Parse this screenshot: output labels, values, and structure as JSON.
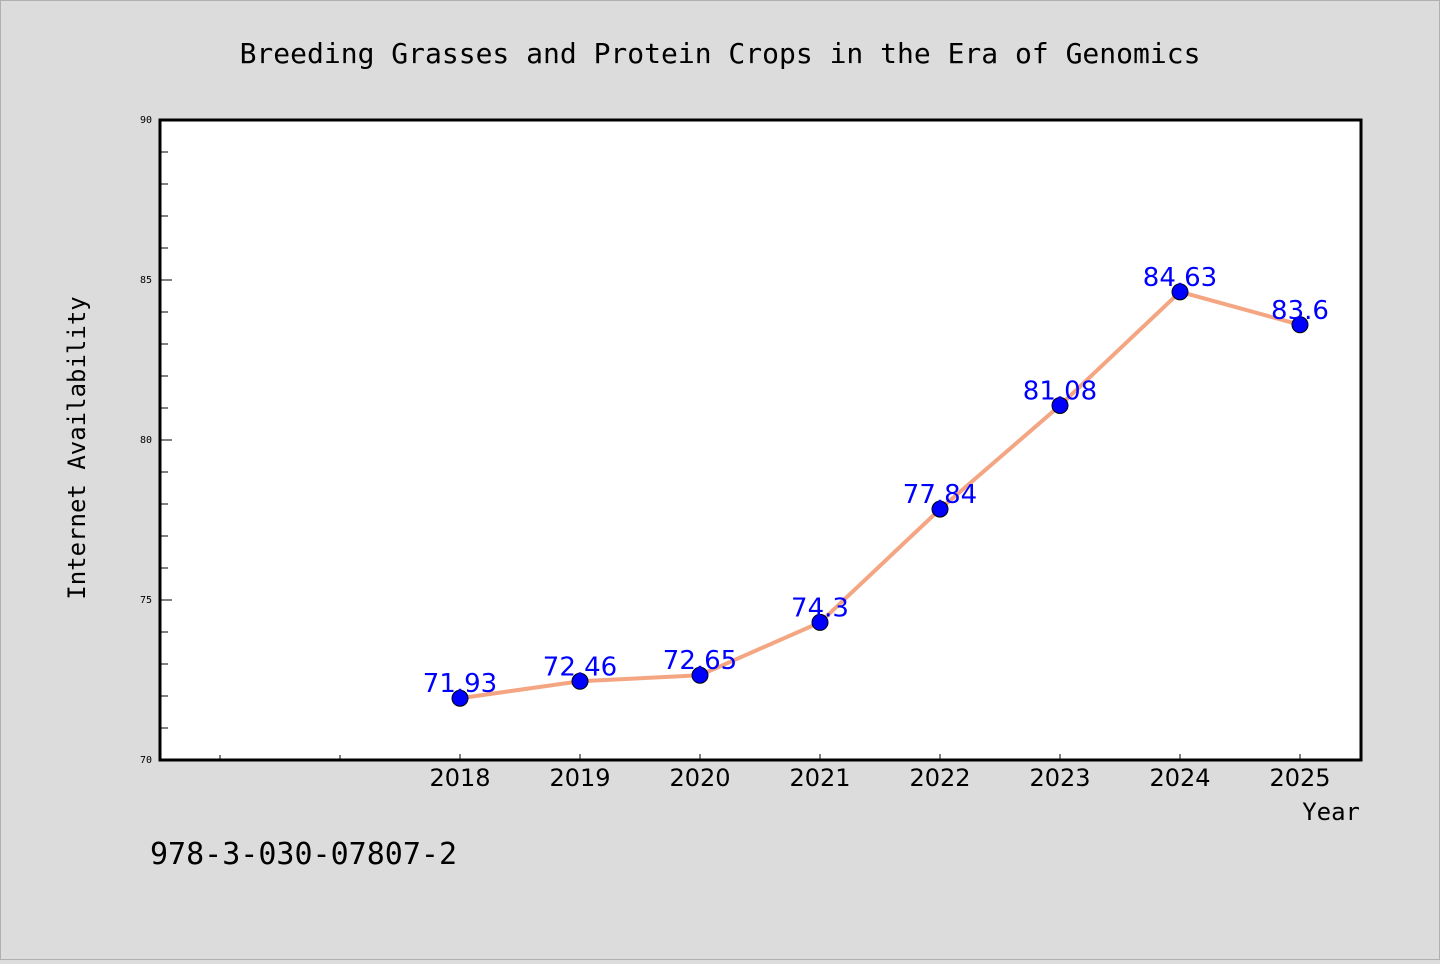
{
  "chart_data": {
    "type": "line",
    "title": "Breeding Grasses and Protein Crops in the Era of Genomics",
    "xlabel": "Year",
    "ylabel": "Internet Availability",
    "footnote": "978-3-030-07807-2",
    "categories": [
      "2018",
      "2019",
      "2020",
      "2021",
      "2022",
      "2023",
      "2024",
      "2025"
    ],
    "series": [
      {
        "values": [
          71.93,
          72.46,
          72.65,
          74.3,
          77.84,
          81.08,
          84.63,
          83.6
        ],
        "value_labels": [
          "71.93",
          "72.46",
          "72.65",
          "74.3",
          "77.84",
          "81.08",
          "84.63",
          "83.6"
        ],
        "line_color": "#f4a582",
        "marker_color": "#0000ff"
      }
    ],
    "yticks": [
      "70",
      "75",
      "80",
      "85",
      "90"
    ],
    "ylim": [
      70,
      90
    ],
    "grid": false,
    "background": "#dcdcdc",
    "plot_background": "#ffffff",
    "label_color": "#0000ff"
  }
}
